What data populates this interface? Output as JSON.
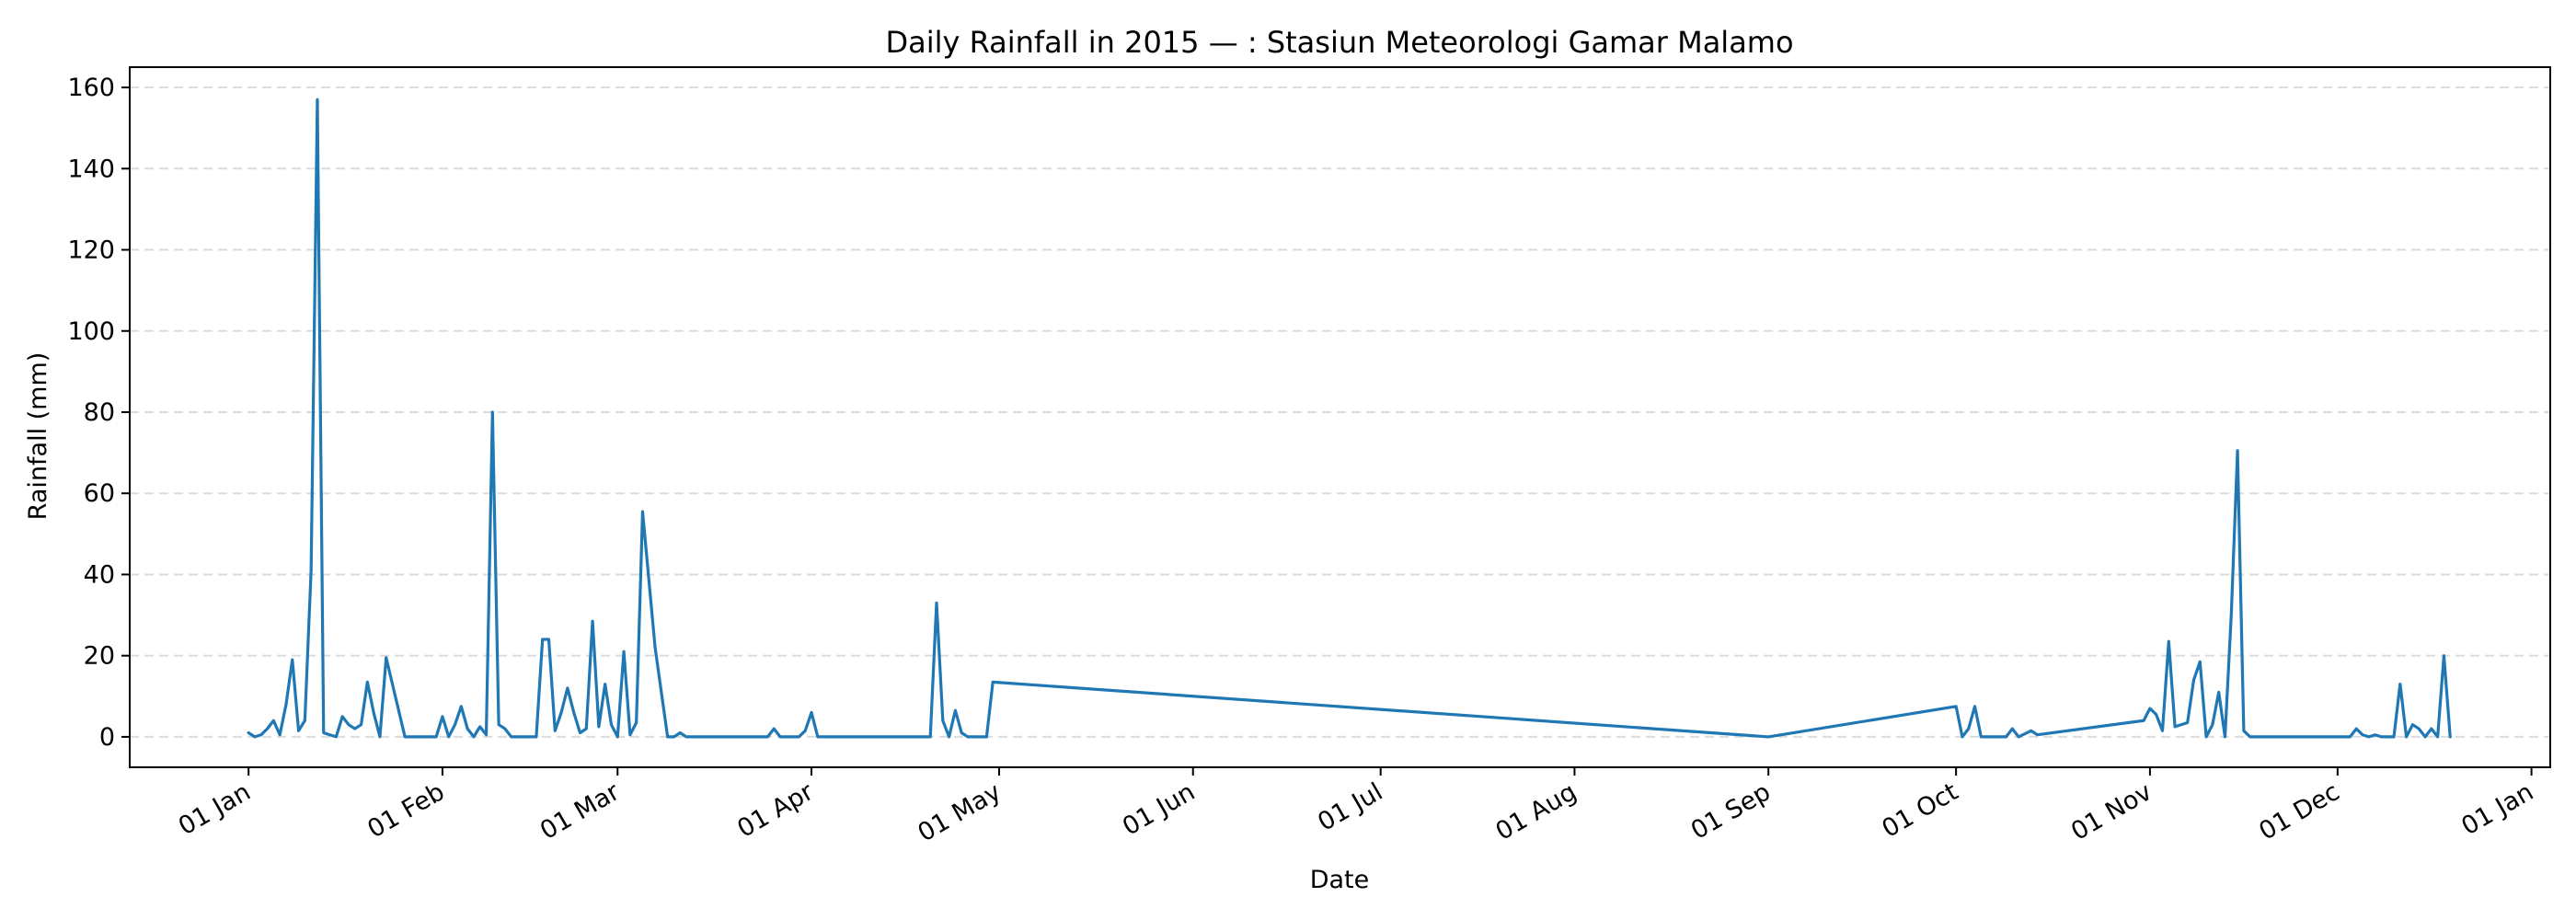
{
  "chart_data": {
    "type": "line",
    "title": "Daily Rainfall in 2015 — :  Stasiun Meteorologi Gamar Malamo",
    "xlabel": "Date",
    "ylabel": "Rainfall (mm)",
    "x_axis": {
      "type": "date",
      "range": [
        "2014-12-13",
        "2016-01-04"
      ],
      "ticks": [
        {
          "date": "2015-01-01",
          "label": "01 Jan"
        },
        {
          "date": "2015-02-01",
          "label": "01 Feb"
        },
        {
          "date": "2015-03-01",
          "label": "01 Mar"
        },
        {
          "date": "2015-04-01",
          "label": "01 Apr"
        },
        {
          "date": "2015-05-01",
          "label": "01 May"
        },
        {
          "date": "2015-06-01",
          "label": "01 Jun"
        },
        {
          "date": "2015-07-01",
          "label": "01 Jul"
        },
        {
          "date": "2015-08-01",
          "label": "01 Aug"
        },
        {
          "date": "2015-09-01",
          "label": "01 Sep"
        },
        {
          "date": "2015-10-01",
          "label": "01 Oct"
        },
        {
          "date": "2015-11-01",
          "label": "01 Nov"
        },
        {
          "date": "2015-12-01",
          "label": "01 Dec"
        },
        {
          "date": "2016-01-01",
          "label": "01 Jan"
        }
      ]
    },
    "y_axis": {
      "range": [
        -7.5,
        165
      ],
      "ticks": [
        0,
        20,
        40,
        60,
        80,
        100,
        120,
        140,
        160
      ]
    },
    "grid": "horizontal dashed",
    "legend": "none",
    "series": [
      {
        "color": "#1f77b4",
        "points": [
          [
            "2015-01-01",
            1
          ],
          [
            "2015-01-02",
            0
          ],
          [
            "2015-01-03",
            0.5
          ],
          [
            "2015-01-04",
            2
          ],
          [
            "2015-01-05",
            4
          ],
          [
            "2015-01-06",
            0.5
          ],
          [
            "2015-01-07",
            8
          ],
          [
            "2015-01-08",
            19
          ],
          [
            "2015-01-09",
            1.5
          ],
          [
            "2015-01-10",
            4
          ],
          [
            "2015-01-11",
            41
          ],
          [
            "2015-01-12",
            157
          ],
          [
            "2015-01-13",
            1
          ],
          [
            "2015-01-14",
            0.5
          ],
          [
            "2015-01-15",
            0
          ],
          [
            "2015-01-16",
            5
          ],
          [
            "2015-01-17",
            3
          ],
          [
            "2015-01-18",
            2
          ],
          [
            "2015-01-19",
            3
          ],
          [
            "2015-01-20",
            13.5
          ],
          [
            "2015-01-21",
            6
          ],
          [
            "2015-01-22",
            0
          ],
          [
            "2015-01-23",
            19.5
          ],
          [
            "2015-01-26",
            0
          ],
          [
            "2015-01-31",
            0
          ],
          [
            "2015-02-01",
            5
          ],
          [
            "2015-02-02",
            0
          ],
          [
            "2015-02-03",
            3
          ],
          [
            "2015-02-04",
            7.5
          ],
          [
            "2015-02-05",
            2
          ],
          [
            "2015-02-06",
            0
          ],
          [
            "2015-02-07",
            2.5
          ],
          [
            "2015-02-08",
            0.5
          ],
          [
            "2015-02-09",
            80
          ],
          [
            "2015-02-10",
            3
          ],
          [
            "2015-02-11",
            2
          ],
          [
            "2015-02-12",
            0
          ],
          [
            "2015-02-16",
            0
          ],
          [
            "2015-02-17",
            24
          ],
          [
            "2015-02-18",
            24
          ],
          [
            "2015-02-19",
            1.5
          ],
          [
            "2015-02-20",
            6
          ],
          [
            "2015-02-21",
            12
          ],
          [
            "2015-02-22",
            6
          ],
          [
            "2015-02-23",
            1
          ],
          [
            "2015-02-24",
            2
          ],
          [
            "2015-02-25",
            28.5
          ],
          [
            "2015-02-26",
            2.5
          ],
          [
            "2015-02-27",
            13
          ],
          [
            "2015-02-28",
            3
          ],
          [
            "2015-03-01",
            0
          ],
          [
            "2015-03-02",
            21
          ],
          [
            "2015-03-03",
            0.5
          ],
          [
            "2015-03-04",
            3.5
          ],
          [
            "2015-03-05",
            55.5
          ],
          [
            "2015-03-07",
            22
          ],
          [
            "2015-03-09",
            0
          ],
          [
            "2015-03-10",
            0
          ],
          [
            "2015-03-11",
            1
          ],
          [
            "2015-03-12",
            0
          ],
          [
            "2015-03-25",
            0
          ],
          [
            "2015-03-26",
            2
          ],
          [
            "2015-03-27",
            0
          ],
          [
            "2015-03-30",
            0
          ],
          [
            "2015-03-31",
            1.5
          ],
          [
            "2015-04-01",
            6
          ],
          [
            "2015-04-02",
            0
          ],
          [
            "2015-04-20",
            0
          ],
          [
            "2015-04-21",
            33
          ],
          [
            "2015-04-22",
            4
          ],
          [
            "2015-04-23",
            0
          ],
          [
            "2015-04-24",
            6.5
          ],
          [
            "2015-04-25",
            1
          ],
          [
            "2015-04-26",
            0
          ],
          [
            "2015-04-29",
            0
          ],
          [
            "2015-04-30",
            13.5
          ],
          [
            "2015-09-01",
            0
          ],
          [
            "2015-10-01",
            7.5
          ],
          [
            "2015-10-02",
            0
          ],
          [
            "2015-10-03",
            2
          ],
          [
            "2015-10-04",
            7.5
          ],
          [
            "2015-10-05",
            0
          ],
          [
            "2015-10-09",
            0
          ],
          [
            "2015-10-10",
            2
          ],
          [
            "2015-10-11",
            0
          ],
          [
            "2015-10-13",
            1.5
          ],
          [
            "2015-10-14",
            0.5
          ],
          [
            "2015-10-31",
            4
          ],
          [
            "2015-11-01",
            7
          ],
          [
            "2015-11-02",
            5.5
          ],
          [
            "2015-11-03",
            1.5
          ],
          [
            "2015-11-04",
            23.5
          ],
          [
            "2015-11-05",
            2.5
          ],
          [
            "2015-11-07",
            3.5
          ],
          [
            "2015-11-08",
            14
          ],
          [
            "2015-11-09",
            18.5
          ],
          [
            "2015-11-10",
            0
          ],
          [
            "2015-11-11",
            3
          ],
          [
            "2015-11-12",
            11
          ],
          [
            "2015-11-13",
            0
          ],
          [
            "2015-11-14",
            30
          ],
          [
            "2015-11-15",
            70.5
          ],
          [
            "2015-11-16",
            1.5
          ],
          [
            "2015-11-17",
            0
          ],
          [
            "2015-12-03",
            0
          ],
          [
            "2015-12-04",
            2
          ],
          [
            "2015-12-05",
            0.5
          ],
          [
            "2015-12-06",
            0
          ],
          [
            "2015-12-07",
            0.5
          ],
          [
            "2015-12-08",
            0
          ],
          [
            "2015-12-10",
            0
          ],
          [
            "2015-12-11",
            13
          ],
          [
            "2015-12-12",
            0
          ],
          [
            "2015-12-13",
            3
          ],
          [
            "2015-12-14",
            2
          ],
          [
            "2015-12-15",
            0
          ],
          [
            "2015-12-16",
            2
          ],
          [
            "2015-12-17",
            0
          ],
          [
            "2015-12-18",
            20
          ],
          [
            "2015-12-19",
            0
          ]
        ]
      }
    ]
  }
}
